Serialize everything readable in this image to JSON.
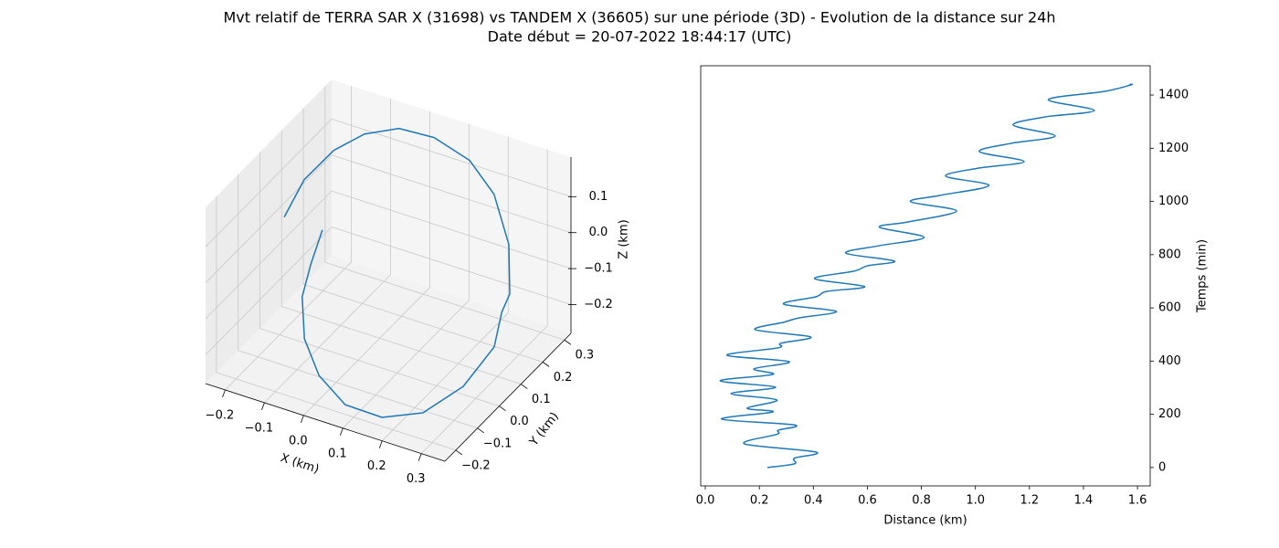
{
  "title": "Mvt relatif de TERRA SAR X (31698) vs TANDEM X (36605) sur une période (3D) - Evolution de la distance sur 24h",
  "subtitle": "Date début = 20-07-2022 18:44:17 (UTC)",
  "chart_data": [
    {
      "type": "line3d",
      "color": "#1f77b4",
      "x": [
        -0.183,
        -0.178,
        -0.15,
        -0.108,
        -0.047,
        0.034,
        0.129,
        0.211,
        0.277,
        0.307,
        0.301,
        0.315,
        0.292,
        0.248,
        0.177,
        0.092,
        0.007,
        -0.059,
        -0.094,
        -0.09,
        -0.078
      ],
      "y": [
        -0.009,
        0.074,
        0.159,
        0.225,
        0.274,
        0.289,
        0.281,
        0.245,
        0.194,
        0.144,
        0.118,
        0.058,
        -0.043,
        -0.149,
        -0.209,
        -0.225,
        -0.192,
        -0.14,
        -0.087,
        -0.055,
        -0.023
      ],
      "z": [
        0.059,
        0.114,
        0.153,
        0.173,
        0.18,
        0.174,
        0.149,
        0.106,
        0.021,
        -0.075,
        -0.112,
        -0.167,
        -0.223,
        -0.247,
        -0.248,
        -0.233,
        -0.202,
        -0.155,
        -0.083,
        -0.012,
        0.069
      ],
      "xlim": [
        -0.25,
        0.36
      ],
      "ylim": [
        -0.25,
        0.33
      ],
      "zlim": [
        -0.28,
        0.21
      ],
      "xticks": [
        {
          "value": -0.2,
          "label": "−0.2"
        },
        {
          "value": -0.1,
          "label": "−0.1"
        },
        {
          "value": 0,
          "label": "0.0"
        },
        0.1,
        0.2,
        0.3
      ],
      "yticks": [
        {
          "value": -0.2,
          "label": "−0.2"
        },
        {
          "value": -0.1,
          "label": "−0.1"
        },
        {
          "value": 0,
          "label": "0.0"
        },
        0.1,
        0.2,
        0.3
      ],
      "zticks": [
        {
          "value": -0.2,
          "label": "−0.2"
        },
        {
          "value": -0.1,
          "label": "−0.1"
        },
        {
          "value": 0,
          "label": "0.0"
        },
        0.1
      ],
      "xlabel": "X (km)",
      "ylabel": "Y (km)",
      "zlabel": "Z (km)",
      "grid": true
    },
    {
      "type": "line",
      "x": [
        0.23,
        0.33,
        0.33,
        0.41,
        0.145,
        0.265,
        0.27,
        0.33,
        0.06,
        0.25,
        0.155,
        0.265,
        0.095,
        0.26,
        0.055,
        0.25,
        0.18,
        0.31,
        0.08,
        0.27,
        0.28,
        0.39,
        0.185,
        0.29,
        0.35,
        0.485,
        0.29,
        0.41,
        0.45,
        0.59,
        0.405,
        0.55,
        0.6,
        0.7,
        0.52,
        0.645,
        0.81,
        0.645,
        0.75,
        0.93,
        0.76,
        0.87,
        1.05,
        0.89,
        1.01,
        1.18,
        1.015,
        1.13,
        1.295,
        1.14,
        1.26,
        1.44,
        1.27,
        1.48,
        1.575,
        1.57
      ],
      "series": [
        {
          "color": "#1f77b4",
          "values": [
            0,
            14,
            35,
            58,
            89,
            125,
            140,
            160,
            182,
            209,
            223,
            254,
            278,
            302,
            326,
            350,
            371,
            398,
            422,
            450,
            467,
            491,
            518,
            546,
            563,
            587,
            614,
            642,
            662,
            680,
            710,
            738,
            758,
            776,
            806,
            834,
            865,
            903,
            923,
            964,
            999,
            1023,
            1060,
            1095,
            1125,
            1150,
            1187,
            1218,
            1246,
            1287,
            1318,
            1342,
            1383,
            1414,
            1438,
            1440
          ]
        }
      ],
      "xlim": [
        -0.017,
        1.647
      ],
      "ylim": [
        -69,
        1510
      ],
      "xticks": [
        {
          "value": 0,
          "label": "0.0"
        },
        0.2,
        0.4,
        0.6,
        0.8,
        {
          "value": 1,
          "label": "1.0"
        },
        1.2,
        1.4,
        1.6
      ],
      "yticks": [
        0,
        200,
        400,
        600,
        800,
        1000,
        1200,
        1400
      ],
      "xlabel": "Distance (km)",
      "ylabel": "Temps (min)"
    }
  ]
}
